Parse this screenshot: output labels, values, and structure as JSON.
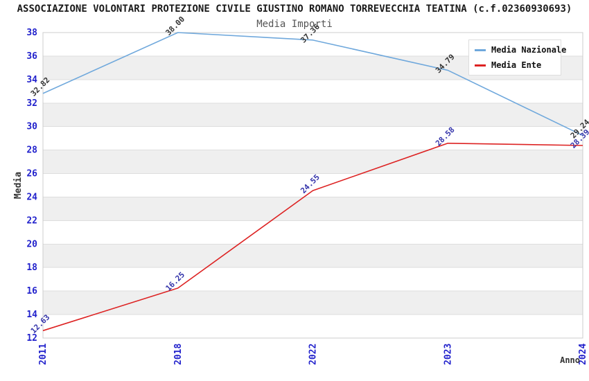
{
  "chart_data": {
    "type": "line",
    "title": "ASSOCIAZIONE VOLONTARI PROTEZIONE CIVILE GIUSTINO ROMANO TORREVECCHIA TEATINA (c.f.02360930693)",
    "subtitle": "Media Importi",
    "xlabel": "Anno",
    "ylabel": "Media",
    "categories": [
      "2011",
      "2018",
      "2022",
      "2023",
      "2024"
    ],
    "series": [
      {
        "name": "Media Nazionale",
        "color": "#6fa8dc",
        "label_color": "#333333",
        "values": [
          32.82,
          38.0,
          37.36,
          34.79,
          29.24
        ],
        "labels": [
          "32.82",
          "38.00",
          "37.36",
          "34.79",
          "29.24"
        ]
      },
      {
        "name": "Media Ente",
        "color": "#dd2222",
        "label_color": "#3333aa",
        "values": [
          12.63,
          16.25,
          24.55,
          28.58,
          28.39
        ],
        "labels": [
          "12.63",
          "16.25",
          "24.55",
          "28.58",
          "28.39"
        ]
      }
    ],
    "ylim": [
      12,
      38
    ],
    "ytick_step": 2,
    "yticks": [
      "12",
      "14",
      "16",
      "18",
      "20",
      "22",
      "24",
      "26",
      "28",
      "30",
      "32",
      "34",
      "36",
      "38"
    ],
    "grid": "horizontal",
    "legend_position": "top-right",
    "band_color": "#efefef",
    "grid_color": "#dddddd",
    "border_color": "#cccccc",
    "axis_tick_color": "#2222cc",
    "axis_title_color": "#333333"
  }
}
